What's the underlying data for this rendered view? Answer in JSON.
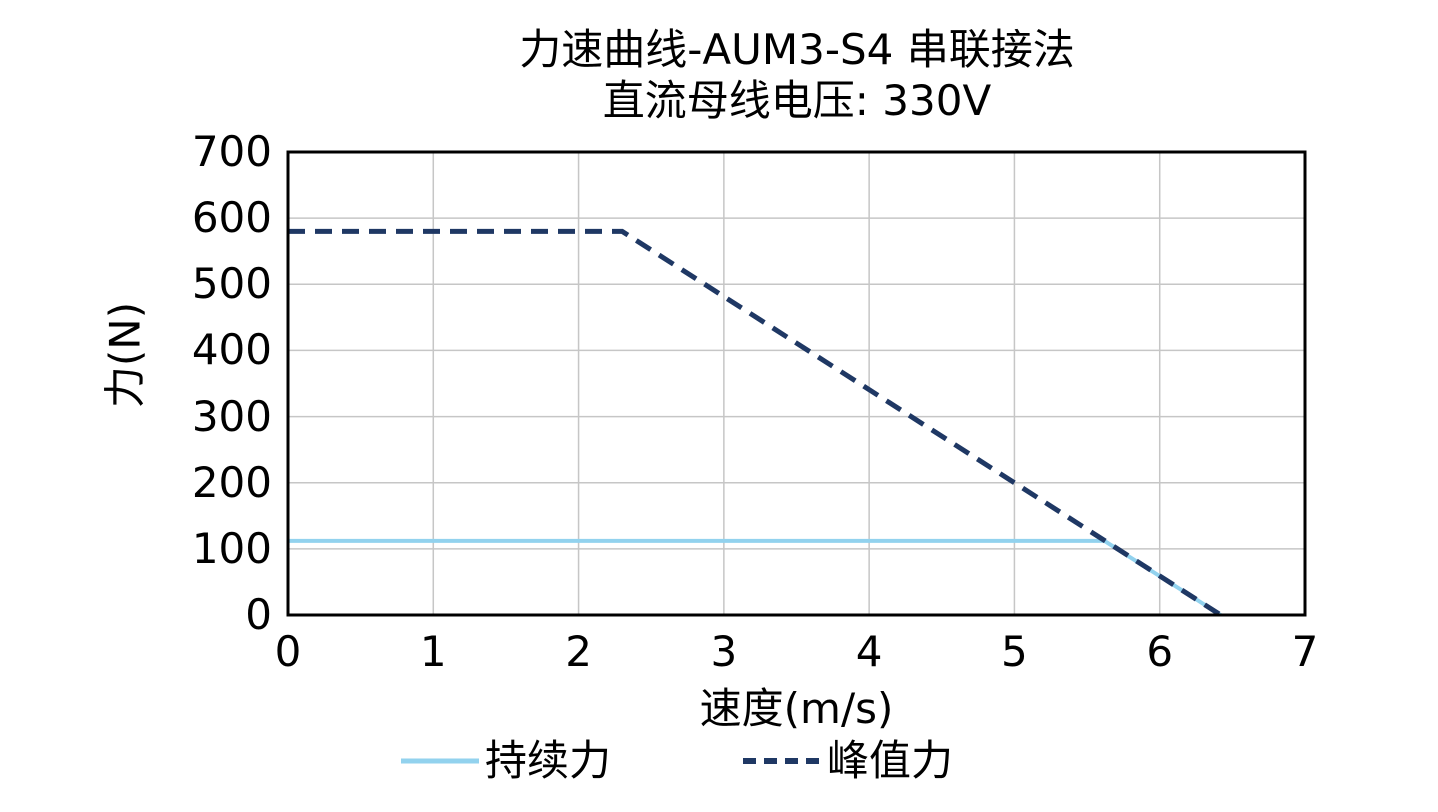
{
  "figure": {
    "title_line1": "力速曲线-AUM3-S4 串联接法",
    "title_line2": "直流母线电压: 330V"
  },
  "chart_data": {
    "type": "line",
    "title": "力速曲线-AUM3-S4 串联接法",
    "subtitle": "直流母线电压: 330V",
    "xlabel": "速度(m/s)",
    "ylabel": "力(N)",
    "xlim": [
      0,
      7
    ],
    "ylim": [
      0,
      700
    ],
    "xticks": [
      0,
      1,
      2,
      3,
      4,
      5,
      6,
      7
    ],
    "yticks": [
      0,
      100,
      200,
      300,
      400,
      500,
      600,
      700
    ],
    "grid": true,
    "grid_color": "#c6c6c6",
    "axis_color": "#000000",
    "legend_position": "bottom-center",
    "series": [
      {
        "id": "continuous-force",
        "name": "持续力",
        "color": "#92d2ee",
        "style": "solid",
        "line_width": 4,
        "points": [
          [
            0,
            112
          ],
          [
            5.62,
            112
          ],
          [
            6.42,
            0
          ]
        ]
      },
      {
        "id": "peak-force",
        "name": "峰值力",
        "color": "#1f3864",
        "style": "dashed",
        "line_width": 5,
        "points": [
          [
            0,
            580
          ],
          [
            2.3,
            580
          ],
          [
            6.42,
            0
          ]
        ]
      }
    ]
  }
}
